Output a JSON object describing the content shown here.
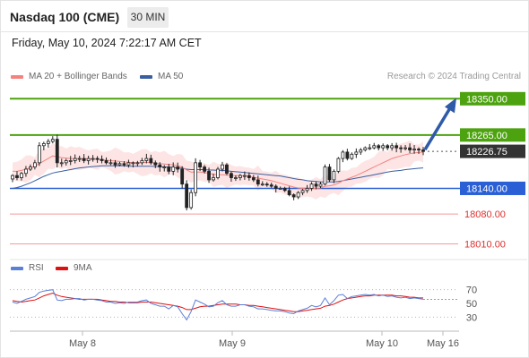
{
  "header": {
    "instrument": "Nasdaq 100 (CME)",
    "timeframe": "30 MIN"
  },
  "datetime": "Friday, May 10, 2024 7:22:17 AM CET",
  "legend": [
    {
      "label": "MA 20 + Bollinger Bands",
      "color": "#f4837f"
    },
    {
      "label": "MA 50",
      "color": "#3a5fa0"
    }
  ],
  "credit": "Research © 2024 Trading Central",
  "colors": {
    "up": "#ffffff",
    "down": "#222222",
    "resistance": "#4da30f",
    "support": "#2a5fd6",
    "target": "#f59a9a",
    "band_fill": "#fde2e2",
    "arrow": "#2f5aa8"
  },
  "chart_data": [
    {
      "type": "candlestick",
      "ylim": [
        17990,
        18380
      ],
      "x_ticks": [
        "May 8",
        "May 9",
        "May 10",
        "May 16"
      ],
      "levels": [
        {
          "label": "18350.00",
          "value": 18350,
          "kind": "resistance"
        },
        {
          "label": "18265.00",
          "value": 18265,
          "kind": "resistance"
        },
        {
          "label": "18226.75",
          "value": 18226.75,
          "kind": "last"
        },
        {
          "label": "18140.00",
          "value": 18140,
          "kind": "support"
        },
        {
          "label": "18080.00",
          "value": 18080,
          "kind": "target"
        },
        {
          "label": "18010.00",
          "value": 18010,
          "kind": "target"
        }
      ],
      "close": [
        18170,
        18165,
        18175,
        18185,
        18190,
        18200,
        18240,
        18245,
        18250,
        18255,
        18200,
        18200,
        18205,
        18205,
        18210,
        18210,
        18205,
        18210,
        18210,
        18208,
        18205,
        18200,
        18200,
        18195,
        18198,
        18195,
        18200,
        18200,
        18200,
        18205,
        18210,
        18200,
        18195,
        18190,
        18190,
        18180,
        18190,
        18185,
        18150,
        18095,
        18130,
        18200,
        18190,
        18180,
        18160,
        18165,
        18185,
        18195,
        18175,
        18165,
        18165,
        18170,
        18170,
        18165,
        18160,
        18150,
        18150,
        18148,
        18145,
        18140,
        18140,
        18135,
        18125,
        18120,
        18130,
        18135,
        18140,
        18150,
        18145,
        18150,
        18190,
        18160,
        18180,
        18210,
        18225,
        18210,
        18220,
        18225,
        18230,
        18235,
        18235,
        18240,
        18235,
        18240,
        18235,
        18240,
        18235,
        18233,
        18235,
        18230,
        18232,
        18230,
        18226.75
      ],
      "rsi": {
        "ylim": [
          20,
          80
        ],
        "ticks": [
          70,
          50,
          30
        ],
        "rsi": [
          52,
          50,
          53,
          56,
          58,
          60,
          66,
          68,
          69,
          70,
          55,
          54,
          56,
          56,
          57,
          57,
          55,
          56,
          56,
          55,
          54,
          52,
          52,
          50,
          51,
          50,
          52,
          52,
          52,
          54,
          55,
          50,
          48,
          46,
          46,
          42,
          47,
          45,
          35,
          26,
          38,
          55,
          52,
          49,
          45,
          46,
          51,
          54,
          48,
          46,
          46,
          48,
          48,
          46,
          45,
          42,
          42,
          41,
          40,
          39,
          39,
          38,
          36,
          35,
          39,
          41,
          43,
          47,
          45,
          47,
          58,
          48,
          54,
          62,
          63,
          57,
          60,
          61,
          62,
          63,
          62,
          63,
          61,
          62,
          60,
          61,
          59,
          58,
          59,
          57,
          58,
          57,
          56
        ],
        "ma9": [
          54,
          53,
          52,
          53,
          54,
          55,
          58,
          61,
          63,
          65,
          62,
          60,
          59,
          58,
          57,
          56,
          56,
          56,
          56,
          56,
          55,
          54,
          53,
          53,
          52,
          52,
          51,
          51,
          51,
          52,
          52,
          52,
          51,
          50,
          49,
          48,
          47,
          46,
          44,
          41,
          41,
          43,
          45,
          46,
          46,
          47,
          48,
          49,
          49,
          49,
          49,
          48,
          48,
          47,
          47,
          46,
          45,
          44,
          43,
          42,
          41,
          40,
          39,
          38,
          38,
          39,
          40,
          41,
          42,
          43,
          46,
          47,
          49,
          52,
          55,
          57,
          58,
          59,
          60,
          61,
          61,
          62,
          62,
          62,
          62,
          62,
          61,
          61,
          60,
          59,
          59,
          58,
          58
        ]
      },
      "series": [
        {
          "name": "MA 20 + Bollinger Bands",
          "values": [
            18180,
            18180,
            18182,
            18185,
            18188,
            18192,
            18198,
            18204,
            18210,
            18216,
            18214,
            18212,
            18211,
            18210,
            18210,
            18210,
            18209,
            18209,
            18209,
            18208,
            18207,
            18206,
            18205,
            18204,
            18203,
            18202,
            18201,
            18200,
            18200,
            18200,
            18201,
            18200,
            18199,
            18198,
            18197,
            18196,
            18195,
            18193,
            18190,
            18183,
            18178,
            18178,
            18178,
            18177,
            18175,
            18173,
            18172,
            18172,
            18171,
            18170,
            18170,
            18170,
            18169,
            18168,
            18166,
            18164,
            18162,
            18160,
            18158,
            18155,
            18152,
            18149,
            18146,
            18143,
            18141,
            18140,
            18139,
            18140,
            18140,
            18141,
            18145,
            18146,
            18148,
            18152,
            18158,
            18162,
            18166,
            18170,
            18175,
            18180,
            18185,
            18190,
            18195,
            18200,
            18205,
            18210,
            18213,
            18216,
            18219,
            18221,
            18223,
            18224,
            18225
          ]
        },
        {
          "name": "MA 50",
          "values": [
            18140,
            18142,
            18145,
            18149,
            18153,
            18158,
            18163,
            18168,
            18172,
            18176,
            18178,
            18180,
            18182,
            18184,
            18186,
            18188,
            18189,
            18190,
            18191,
            18192,
            18193,
            18193,
            18193,
            18193,
            18193,
            18193,
            18192,
            18192,
            18192,
            18192,
            18192,
            18192,
            18191,
            18191,
            18190,
            18190,
            18189,
            18188,
            18187,
            18185,
            18184,
            18184,
            18184,
            18184,
            18183,
            18183,
            18182,
            18182,
            18181,
            18180,
            18179,
            18178,
            18177,
            18176,
            18175,
            18174,
            18173,
            18172,
            18171,
            18170,
            18169,
            18167,
            18165,
            18163,
            18161,
            18160,
            18158,
            18157,
            18156,
            18155,
            18155,
            18155,
            18155,
            18156,
            18158,
            18160,
            18162,
            18164,
            18166,
            18168,
            18170,
            18172,
            18174,
            18176,
            18178,
            18180,
            18181,
            18182,
            18184,
            18185,
            18186,
            18187,
            18188
          ]
        }
      ]
    }
  ]
}
